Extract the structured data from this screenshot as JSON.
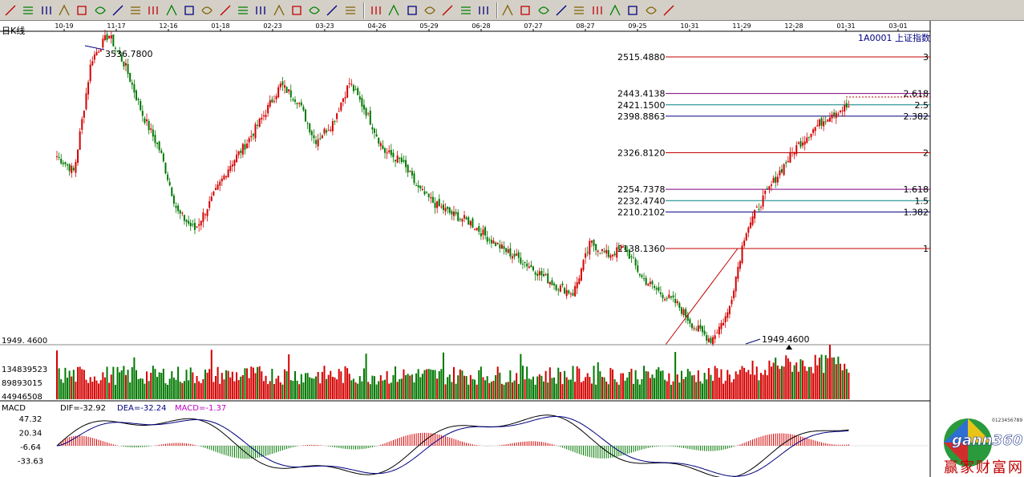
{
  "toolbar": {
    "icons": [
      "pencil-icon",
      "line-tool-icon",
      "parallel-line-icon",
      "channel-icon",
      "fan-icon",
      "fibonacci-icon",
      "bar-icon",
      "tree-icon",
      "grid-icon",
      "period-icon",
      "gann-fan-icon",
      "gann-box-icon",
      "speed-line-icon",
      "arc-icon",
      "pitchfork-icon",
      "ratio-icon",
      "gann-grid-icon",
      "period-line-icon",
      "cycle-icon",
      "angle-icon",
      "box-icon",
      "ellipse-icon",
      "triangle-icon",
      "arrow-icon",
      "rect-icon",
      "text-icon",
      "wave-icon",
      "scale-icon",
      "percent-icon",
      "coin-icon",
      "gold-icon",
      "gann-square-icon",
      "flag-icon",
      "gold-ratio-icon",
      "gann-line-icon",
      "wave-line-icon",
      "erase-icon"
    ]
  },
  "chart": {
    "period_label": "日K线",
    "instrument": "1A0001 上证指数",
    "date_ticks": [
      "10-19",
      "11-17",
      "12-16",
      "01-18",
      "02-23",
      "03-23",
      "04-26",
      "05-29",
      "06-28",
      "07-27",
      "08-27",
      "09-25",
      "10-31",
      "11-29",
      "12-28",
      "01-31",
      "03-01"
    ],
    "high_label": "3536.7800",
    "low_label": "1949.4600",
    "axis_low": "1949. 4600",
    "colors": {
      "up": "#d40000",
      "down": "#007800",
      "fib_red": "#c00000",
      "fib_blue": "#000080",
      "fib_teal": "#008080",
      "fib_purple": "#800080"
    }
  },
  "fib_levels": [
    {
      "price": "2515.4880",
      "ratio": "3",
      "color": "#c00000"
    },
    {
      "price": "2443.4138",
      "ratio": "2.618",
      "color": "#800080"
    },
    {
      "price": "2421.1500",
      "ratio": "2.5",
      "color": "#008080"
    },
    {
      "price": "2398.8863",
      "ratio": "2.382",
      "color": "#000080"
    },
    {
      "price": "2326.8120",
      "ratio": "2",
      "color": "#c00000"
    },
    {
      "price": "2254.7378",
      "ratio": "1.618",
      "color": "#800080"
    },
    {
      "price": "2232.4740",
      "ratio": "1.5",
      "color": "#008080"
    },
    {
      "price": "2210.2102",
      "ratio": "1.382",
      "color": "#000080"
    },
    {
      "price": "2138.1360",
      "ratio": "1",
      "color": "#c00000"
    }
  ],
  "volume": {
    "ticks": [
      "134839523",
      "89893015",
      "44946508"
    ]
  },
  "macd": {
    "title": "MACD",
    "dif": "DIF=-32.92",
    "dea": "DEA=-32.24",
    "macd": "MACD=-1.37",
    "ticks": [
      "47.32",
      "20.34",
      "-6.64",
      "-33.63"
    ]
  },
  "logo": {
    "brand": "gann360",
    "slogan": "赢家财富网"
  },
  "chart_data": {
    "type": "candlestick",
    "title": "1A0001 上证指数",
    "x_ticks": [
      "10-19",
      "11-17",
      "12-16",
      "01-18",
      "02-23",
      "03-23",
      "04-26",
      "05-29",
      "06-28",
      "07-27",
      "08-27",
      "09-25",
      "10-31",
      "11-29",
      "12-28",
      "01-31",
      "03-01"
    ],
    "y_range": [
      1949.46,
      2515.488
    ],
    "swing_high": 3536.78,
    "swing_low": 1949.46,
    "fibonacci_levels": [
      {
        "ratio": 3,
        "price": 2515.488
      },
      {
        "ratio": 2.618,
        "price": 2443.4138
      },
      {
        "ratio": 2.5,
        "price": 2421.15
      },
      {
        "ratio": 2.382,
        "price": 2398.8863
      },
      {
        "ratio": 2,
        "price": 2326.812
      },
      {
        "ratio": 1.618,
        "price": 2254.7378
      },
      {
        "ratio": 1.5,
        "price": 2232.474
      },
      {
        "ratio": 1.382,
        "price": 2210.2102
      },
      {
        "ratio": 1,
        "price": 2138.136
      }
    ],
    "close_path": [
      2320,
      2290,
      2510,
      2560,
      2495,
      2400,
      2330,
      2210,
      2175,
      2235,
      2300,
      2345,
      2400,
      2460,
      2430,
      2350,
      2385,
      2465,
      2405,
      2330,
      2310,
      2255,
      2225,
      2205,
      2190,
      2160,
      2135,
      2115,
      2090,
      2065,
      2050,
      2150,
      2125,
      2140,
      2080,
      2052,
      2030,
      1985,
      1958,
      2012,
      2172,
      2235,
      2290,
      2340,
      2375,
      2405,
      2418
    ],
    "volume_ticks": [
      134839523,
      89893015,
      44946508
    ],
    "macd": {
      "DIF": -32.92,
      "DEA": -32.24,
      "MACD": -1.37,
      "ticks": [
        47.32,
        20.34,
        -6.64,
        -33.63
      ]
    }
  }
}
